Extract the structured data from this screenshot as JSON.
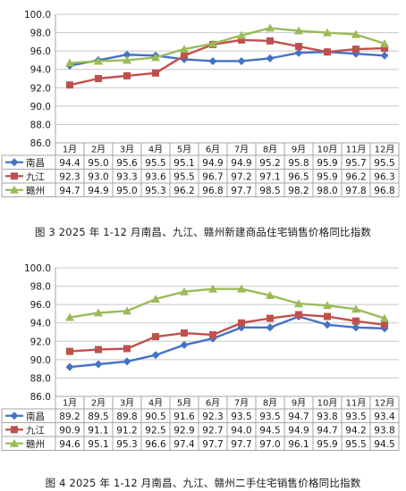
{
  "chart_data": [
    {
      "type": "line",
      "title": "图 3   2025 年 1-12 月南昌、九江、赣州新建商品住宅销售价格同比指数",
      "categories": [
        "1月",
        "2月",
        "3月",
        "4月",
        "5月",
        "6月",
        "7月",
        "8月",
        "9月",
        "10月",
        "11月",
        "12月"
      ],
      "ylim": [
        86.0,
        100.0
      ],
      "yticks": [
        "86.0",
        "88.0",
        "90.0",
        "92.0",
        "94.0",
        "96.0",
        "98.0",
        "100.0"
      ],
      "grid": true,
      "legend": "data-table",
      "series": [
        {
          "name": "南昌",
          "color": "#4472c4",
          "marker": "diamond",
          "values": [
            94.4,
            95.0,
            95.6,
            95.5,
            95.1,
            94.9,
            94.9,
            95.2,
            95.8,
            95.9,
            95.7,
            95.5
          ]
        },
        {
          "name": "九江",
          "color": "#c0504d",
          "marker": "square",
          "values": [
            92.3,
            93.0,
            93.3,
            93.6,
            95.5,
            96.7,
            97.2,
            97.1,
            96.5,
            95.9,
            96.2,
            96.3
          ]
        },
        {
          "name": "赣州",
          "color": "#9bbb59",
          "marker": "triangle",
          "values": [
            94.7,
            94.9,
            95.0,
            95.3,
            96.2,
            96.8,
            97.7,
            98.5,
            98.2,
            98.0,
            97.8,
            96.8
          ]
        }
      ]
    },
    {
      "type": "line",
      "title": "图 4   2025 年 1-12 月南昌、九江、赣州二手住宅销售价格同比指数",
      "categories": [
        "1月",
        "2月",
        "3月",
        "4月",
        "5月",
        "6月",
        "7月",
        "8月",
        "9月",
        "10月",
        "11月",
        "12月"
      ],
      "ylim": [
        86.0,
        100.0
      ],
      "yticks": [
        "86.0",
        "88.0",
        "90.0",
        "92.0",
        "94.0",
        "96.0",
        "98.0",
        "100.0"
      ],
      "grid": true,
      "legend": "data-table",
      "series": [
        {
          "name": "南昌",
          "color": "#4472c4",
          "marker": "diamond",
          "values": [
            89.2,
            89.5,
            89.8,
            90.5,
            91.6,
            92.3,
            93.5,
            93.5,
            94.7,
            93.8,
            93.5,
            93.4
          ]
        },
        {
          "name": "九江",
          "color": "#c0504d",
          "marker": "square",
          "values": [
            90.9,
            91.1,
            91.2,
            92.5,
            92.9,
            92.7,
            94.0,
            94.5,
            94.9,
            94.7,
            94.2,
            93.8
          ]
        },
        {
          "name": "赣州",
          "color": "#9bbb59",
          "marker": "triangle",
          "values": [
            94.6,
            95.1,
            95.3,
            96.6,
            97.4,
            97.7,
            97.7,
            97.0,
            96.1,
            95.9,
            95.5,
            94.5
          ]
        }
      ]
    }
  ]
}
